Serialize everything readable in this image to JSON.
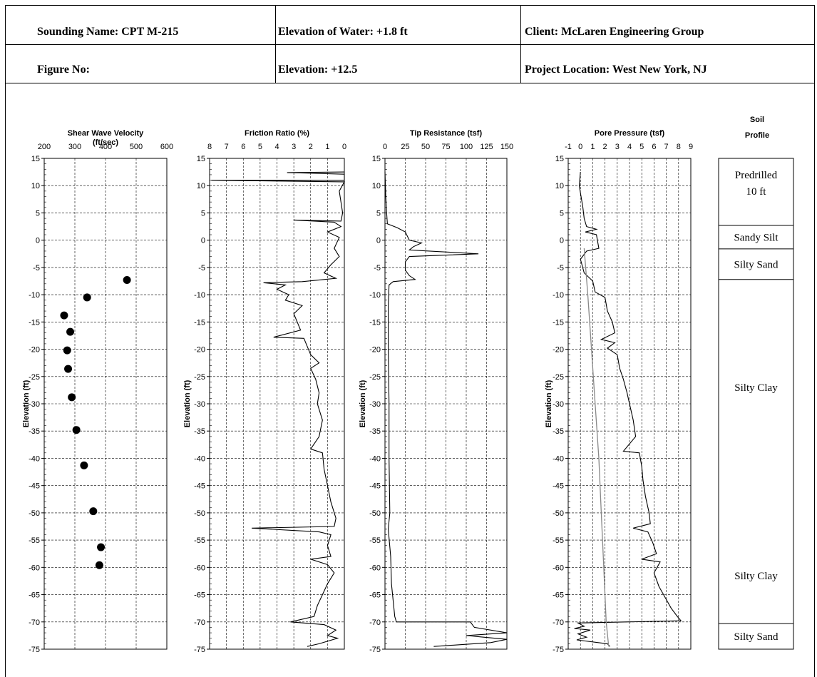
{
  "header": {
    "sounding_name": "Sounding Name:  CPT M-215",
    "elevation_water": "Elevation of Water:  +1.8 ft",
    "client": "Client:  McLaren Engineering Group",
    "figure_no": "Figure No:",
    "elevation": "Elevation: +12.5",
    "project_location": "Project Location:  West New York, NJ"
  },
  "chart_data": {
    "y_axis": {
      "label": "Elevation (ft)",
      "ylim": [
        -75,
        15
      ],
      "ticks": [
        15,
        10,
        5,
        0,
        -5,
        -10,
        -15,
        -20,
        -25,
        -30,
        -35,
        -40,
        -45,
        -50,
        -55,
        -60,
        -65,
        -70,
        -75
      ]
    },
    "panels": [
      {
        "type": "scatter",
        "title": "Shear Wave Velocity",
        "units": "(ft/sec)",
        "xlim": [
          200,
          600
        ],
        "xticks": [
          200,
          300,
          400,
          500,
          600
        ],
        "points": [
          {
            "x": 470,
            "y": -7.3
          },
          {
            "x": 340,
            "y": -10.5
          },
          {
            "x": 265,
            "y": -13.8
          },
          {
            "x": 285,
            "y": -16.8
          },
          {
            "x": 275,
            "y": -20.2
          },
          {
            "x": 278,
            "y": -23.6
          },
          {
            "x": 290,
            "y": -28.8
          },
          {
            "x": 305,
            "y": -34.8
          },
          {
            "x": 330,
            "y": -41.3
          },
          {
            "x": 360,
            "y": -49.7
          },
          {
            "x": 385,
            "y": -56.3
          },
          {
            "x": 380,
            "y": -59.6
          }
        ]
      },
      {
        "type": "line",
        "title": "Friction Ratio (%)",
        "xlim": [
          8,
          0
        ],
        "xticks": [
          8,
          7,
          6,
          5,
          4,
          3,
          2,
          1,
          0
        ],
        "series": [
          {
            "x": 0,
            "y": 12.5
          },
          {
            "x": 3.4,
            "y": 12.4
          },
          {
            "x": 0,
            "y": 12.1
          },
          {
            "x": 0,
            "y": 11.0
          },
          {
            "x": 7.9,
            "y": 11.0
          },
          {
            "x": 0,
            "y": 10.7
          },
          {
            "x": 0.3,
            "y": 9.0
          },
          {
            "x": 0.1,
            "y": 5.0
          },
          {
            "x": 0.2,
            "y": 3.5
          },
          {
            "x": 3.0,
            "y": 3.7
          },
          {
            "x": 0.6,
            "y": 3.3
          },
          {
            "x": 0.2,
            "y": 2.5
          },
          {
            "x": 1.0,
            "y": 1.5
          },
          {
            "x": 0.3,
            "y": 0.5
          },
          {
            "x": 0.6,
            "y": -1.5
          },
          {
            "x": 0.3,
            "y": -3.0
          },
          {
            "x": 0.8,
            "y": -4.5
          },
          {
            "x": 1.2,
            "y": -6.0
          },
          {
            "x": 0.5,
            "y": -7.0
          },
          {
            "x": 2.5,
            "y": -7.6
          },
          {
            "x": 4.8,
            "y": -7.8
          },
          {
            "x": 3.5,
            "y": -8.2
          },
          {
            "x": 4.0,
            "y": -9.0
          },
          {
            "x": 3.3,
            "y": -10.0
          },
          {
            "x": 3.5,
            "y": -11.0
          },
          {
            "x": 2.5,
            "y": -12.0
          },
          {
            "x": 3.0,
            "y": -13.5
          },
          {
            "x": 2.8,
            "y": -15.0
          },
          {
            "x": 2.6,
            "y": -16.5
          },
          {
            "x": 4.2,
            "y": -17.8
          },
          {
            "x": 2.4,
            "y": -18.0
          },
          {
            "x": 2.2,
            "y": -19.5
          },
          {
            "x": 2.0,
            "y": -21.0
          },
          {
            "x": 1.5,
            "y": -22.5
          },
          {
            "x": 2.0,
            "y": -23.5
          },
          {
            "x": 1.7,
            "y": -25.5
          },
          {
            "x": 1.5,
            "y": -28.0
          },
          {
            "x": 1.6,
            "y": -30.0
          },
          {
            "x": 1.3,
            "y": -33.0
          },
          {
            "x": 1.5,
            "y": -36.0
          },
          {
            "x": 2.0,
            "y": -38.3
          },
          {
            "x": 1.3,
            "y": -39.0
          },
          {
            "x": 1.2,
            "y": -42.0
          },
          {
            "x": 1.0,
            "y": -45.0
          },
          {
            "x": 0.8,
            "y": -48.0
          },
          {
            "x": 0.5,
            "y": -51.0
          },
          {
            "x": 0.6,
            "y": -52.5
          },
          {
            "x": 5.5,
            "y": -52.8
          },
          {
            "x": 1.5,
            "y": -53.5
          },
          {
            "x": 0.8,
            "y": -54.0
          },
          {
            "x": 1.0,
            "y": -56.0
          },
          {
            "x": 0.8,
            "y": -58.0
          },
          {
            "x": 2.0,
            "y": -58.5
          },
          {
            "x": 1.0,
            "y": -59.5
          },
          {
            "x": 0.6,
            "y": -61.0
          },
          {
            "x": 1.0,
            "y": -63.0
          },
          {
            "x": 1.3,
            "y": -65.0
          },
          {
            "x": 1.6,
            "y": -67.0
          },
          {
            "x": 1.8,
            "y": -69.0
          },
          {
            "x": 3.2,
            "y": -70.0
          },
          {
            "x": 1.2,
            "y": -70.5
          },
          {
            "x": 0.5,
            "y": -71.5
          },
          {
            "x": 1.0,
            "y": -72.5
          },
          {
            "x": 0.4,
            "y": -73.0
          },
          {
            "x": 1.5,
            "y": -74.0
          },
          {
            "x": 2.2,
            "y": -74.5
          }
        ]
      },
      {
        "type": "line",
        "title": "Tip Resistance (tsf)",
        "xlim": [
          0,
          150
        ],
        "xticks": [
          0,
          25,
          50,
          75,
          100,
          125,
          150
        ],
        "series": [
          {
            "x": 0,
            "y": 12.5
          },
          {
            "x": 1,
            "y": 8.0
          },
          {
            "x": 2,
            "y": 5.0
          },
          {
            "x": 3,
            "y": 3.0
          },
          {
            "x": 15,
            "y": 2.3
          },
          {
            "x": 25,
            "y": 1.5
          },
          {
            "x": 30,
            "y": 0.0
          },
          {
            "x": 45,
            "y": -0.5
          },
          {
            "x": 35,
            "y": -1.2
          },
          {
            "x": 30,
            "y": -1.8
          },
          {
            "x": 115,
            "y": -2.5
          },
          {
            "x": 30,
            "y": -3.0
          },
          {
            "x": 25,
            "y": -4.0
          },
          {
            "x": 25,
            "y": -5.5
          },
          {
            "x": 30,
            "y": -6.5
          },
          {
            "x": 37,
            "y": -7.2
          },
          {
            "x": 10,
            "y": -7.6
          },
          {
            "x": 5,
            "y": -8.2
          },
          {
            "x": 4,
            "y": -12.0
          },
          {
            "x": 4,
            "y": -20.0
          },
          {
            "x": 5,
            "y": -30.0
          },
          {
            "x": 5,
            "y": -40.0
          },
          {
            "x": 6,
            "y": -50.0
          },
          {
            "x": 4,
            "y": -53.0
          },
          {
            "x": 7,
            "y": -58.0
          },
          {
            "x": 8,
            "y": -63.0
          },
          {
            "x": 10,
            "y": -66.0
          },
          {
            "x": 12,
            "y": -69.0
          },
          {
            "x": 14,
            "y": -70.0
          },
          {
            "x": 105,
            "y": -70.0
          },
          {
            "x": 110,
            "y": -71.0
          },
          {
            "x": 150,
            "y": -72.0
          },
          {
            "x": 100,
            "y": -72.5
          },
          {
            "x": 150,
            "y": -73.2
          },
          {
            "x": 130,
            "y": -73.8
          },
          {
            "x": 60,
            "y": -74.5
          }
        ]
      },
      {
        "type": "line",
        "title": "Pore Pressure (tsf)",
        "xlim": [
          -1,
          9
        ],
        "xticks": [
          -1,
          0,
          1,
          2,
          3,
          4,
          5,
          6,
          7,
          8,
          9
        ],
        "series": [
          {
            "name": "measured",
            "points": [
              {
                "x": 0,
                "y": 12.5
              },
              {
                "x": -0.1,
                "y": 10.0
              },
              {
                "x": 0.2,
                "y": 6.0
              },
              {
                "x": 0.3,
                "y": 4.0
              },
              {
                "x": 0.5,
                "y": 2.5
              },
              {
                "x": 1.3,
                "y": 2.0
              },
              {
                "x": 0.4,
                "y": 1.5
              },
              {
                "x": 1.3,
                "y": 1.0
              },
              {
                "x": 1.5,
                "y": -1.5
              },
              {
                "x": 0.5,
                "y": -2.0
              },
              {
                "x": 0.0,
                "y": -3.5
              },
              {
                "x": 0.3,
                "y": -6.0
              },
              {
                "x": 1.0,
                "y": -7.5
              },
              {
                "x": 1.2,
                "y": -9.5
              },
              {
                "x": 2.0,
                "y": -10.5
              },
              {
                "x": 2.2,
                "y": -13.0
              },
              {
                "x": 2.6,
                "y": -15.0
              },
              {
                "x": 2.8,
                "y": -17.0
              },
              {
                "x": 1.7,
                "y": -18.2
              },
              {
                "x": 2.8,
                "y": -18.8
              },
              {
                "x": 2.2,
                "y": -19.8
              },
              {
                "x": 3.0,
                "y": -21.0
              },
              {
                "x": 3.2,
                "y": -23.5
              },
              {
                "x": 3.5,
                "y": -25.5
              },
              {
                "x": 3.8,
                "y": -28.0
              },
              {
                "x": 4.0,
                "y": -30.0
              },
              {
                "x": 4.3,
                "y": -33.0
              },
              {
                "x": 4.5,
                "y": -36.0
              },
              {
                "x": 3.5,
                "y": -38.7
              },
              {
                "x": 4.8,
                "y": -39.0
              },
              {
                "x": 5.0,
                "y": -41.5
              },
              {
                "x": 5.1,
                "y": -44.0
              },
              {
                "x": 5.3,
                "y": -47.0
              },
              {
                "x": 5.6,
                "y": -50.0
              },
              {
                "x": 5.7,
                "y": -52.0
              },
              {
                "x": 4.3,
                "y": -52.8
              },
              {
                "x": 5.5,
                "y": -53.5
              },
              {
                "x": 5.9,
                "y": -55.5
              },
              {
                "x": 6.2,
                "y": -57.5
              },
              {
                "x": 5.0,
                "y": -58.5
              },
              {
                "x": 6.5,
                "y": -59.0
              },
              {
                "x": 6.0,
                "y": -61.0
              },
              {
                "x": 6.4,
                "y": -63.5
              },
              {
                "x": 6.9,
                "y": -65.5
              },
              {
                "x": 7.4,
                "y": -67.5
              },
              {
                "x": 7.9,
                "y": -69.0
              },
              {
                "x": 8.2,
                "y": -69.8
              },
              {
                "x": -0.2,
                "y": -70.2
              },
              {
                "x": 0.3,
                "y": -70.8
              },
              {
                "x": -0.5,
                "y": -71.2
              },
              {
                "x": 0.8,
                "y": -71.5
              },
              {
                "x": -0.2,
                "y": -72.2
              },
              {
                "x": 0.5,
                "y": -72.8
              },
              {
                "x": -0.3,
                "y": -73.3
              },
              {
                "x": 2.2,
                "y": -74.0
              },
              {
                "x": 2.4,
                "y": -74.5
              }
            ]
          },
          {
            "name": "hydrostatic",
            "points": [
              {
                "x": 0.3,
                "y": -1.5
              },
              {
                "x": 0.6,
                "y": -10.0
              },
              {
                "x": 0.9,
                "y": -20.0
              },
              {
                "x": 1.2,
                "y": -30.0
              },
              {
                "x": 1.5,
                "y": -40.0
              },
              {
                "x": 1.7,
                "y": -50.0
              },
              {
                "x": 1.9,
                "y": -60.0
              },
              {
                "x": 2.1,
                "y": -70.0
              },
              {
                "x": 2.3,
                "y": -74.5
              }
            ]
          }
        ]
      }
    ],
    "soil_profile": {
      "title_line1": "Soil",
      "title_line2": "Profile",
      "layers": [
        {
          "top": 15,
          "bottom": 2.7,
          "label1": "Predrilled",
          "label2": "10 ft"
        },
        {
          "top": 2.7,
          "bottom": -1.6,
          "label1": "Sandy Silt",
          "label2": ""
        },
        {
          "top": -1.6,
          "bottom": -7.2,
          "label1": "Silty Sand",
          "label2": ""
        },
        {
          "top": -7.2,
          "bottom": -70.3,
          "label1": "Silty Clay",
          "label2": ""
        },
        {
          "top": -70.3,
          "bottom": -75,
          "label1": "Silty Sand",
          "label2": ""
        }
      ],
      "extra_labels": [
        {
          "y": -27,
          "label": "Silty Clay"
        },
        {
          "y": -61.5,
          "label": "Silty Clay"
        }
      ]
    }
  }
}
